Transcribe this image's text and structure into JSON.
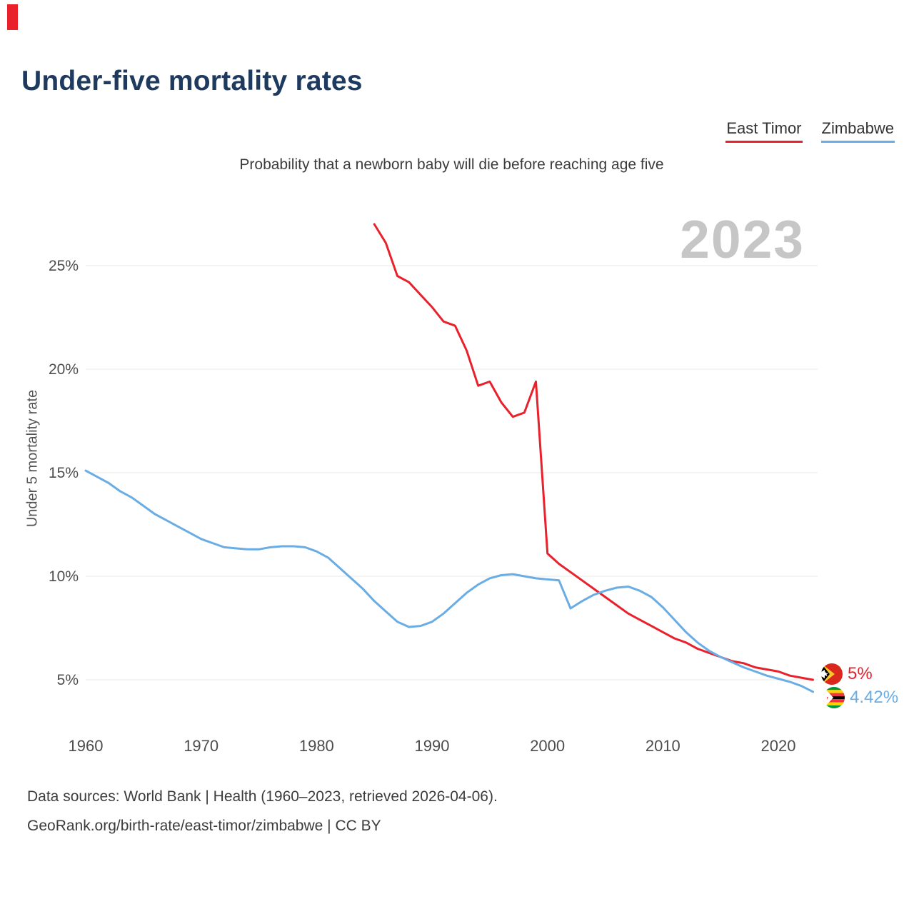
{
  "page": {
    "title": "Under-five mortality rates",
    "subtitle": "Probability that a newborn baby will die before reaching age five",
    "watermark": "2023",
    "footer": {
      "line1": "Data sources: World Bank | Health (1960–2023, retrieved 2026-04-06).",
      "line2": "GeoRank.org/birth-rate/east-timor/zimbabwe | CC BY"
    }
  },
  "legend": {
    "items": [
      {
        "label": "East Timor",
        "color": "#e8212b"
      },
      {
        "label": "Zimbabwe",
        "color": "#6aade4"
      }
    ]
  },
  "end_labels": {
    "east_timor": {
      "value": "5%",
      "color": "#e8212b",
      "flag_icon": "east-timor-flag"
    },
    "zimbabwe": {
      "value": "4.42%",
      "color": "#6aade4",
      "flag_icon": "zimbabwe-flag"
    }
  },
  "chart_data": {
    "type": "line",
    "title": "Under-five mortality rates",
    "subtitle": "Probability that a newborn baby will die before reaching age five",
    "xlabel": "",
    "ylabel": "Under 5 mortality rate",
    "x_ticks": [
      1960,
      1970,
      1980,
      1990,
      2000,
      2010,
      2020
    ],
    "y_ticks": [
      5,
      10,
      15,
      20,
      25
    ],
    "y_tick_labels": [
      "5%",
      "10%",
      "15%",
      "20%",
      "25%"
    ],
    "xlim": [
      1958,
      2026
    ],
    "ylim": [
      4,
      28
    ],
    "grid": "horizontal",
    "legend_position": "top-right",
    "series": [
      {
        "name": "East Timor",
        "color": "#e8212b",
        "end_label": "5%",
        "points": [
          [
            1985,
            27.0
          ],
          [
            1986,
            26.1
          ],
          [
            1987,
            24.5
          ],
          [
            1988,
            24.2
          ],
          [
            1989,
            23.6
          ],
          [
            1990,
            23.0
          ],
          [
            1991,
            22.3
          ],
          [
            1992,
            22.1
          ],
          [
            1993,
            20.9
          ],
          [
            1994,
            19.2
          ],
          [
            1995,
            19.4
          ],
          [
            1996,
            18.4
          ],
          [
            1997,
            17.7
          ],
          [
            1998,
            17.9
          ],
          [
            1999,
            19.4
          ],
          [
            2000,
            11.1
          ],
          [
            2001,
            10.6
          ],
          [
            2002,
            10.2
          ],
          [
            2003,
            9.8
          ],
          [
            2004,
            9.4
          ],
          [
            2005,
            9.0
          ],
          [
            2006,
            8.6
          ],
          [
            2007,
            8.2
          ],
          [
            2008,
            7.9
          ],
          [
            2009,
            7.6
          ],
          [
            2010,
            7.3
          ],
          [
            2011,
            7.0
          ],
          [
            2012,
            6.8
          ],
          [
            2013,
            6.5
          ],
          [
            2014,
            6.3
          ],
          [
            2015,
            6.1
          ],
          [
            2016,
            5.9
          ],
          [
            2017,
            5.8
          ],
          [
            2018,
            5.6
          ],
          [
            2019,
            5.5
          ],
          [
            2020,
            5.4
          ],
          [
            2021,
            5.2
          ],
          [
            2022,
            5.1
          ],
          [
            2023,
            5.0
          ]
        ]
      },
      {
        "name": "Zimbabwe",
        "color": "#6aade4",
        "end_label": "4.42%",
        "points": [
          [
            1960,
            15.1
          ],
          [
            1961,
            14.8
          ],
          [
            1962,
            14.5
          ],
          [
            1963,
            14.1
          ],
          [
            1964,
            13.8
          ],
          [
            1965,
            13.4
          ],
          [
            1966,
            13.0
          ],
          [
            1967,
            12.7
          ],
          [
            1968,
            12.4
          ],
          [
            1969,
            12.1
          ],
          [
            1970,
            11.8
          ],
          [
            1971,
            11.6
          ],
          [
            1972,
            11.4
          ],
          [
            1973,
            11.35
          ],
          [
            1974,
            11.3
          ],
          [
            1975,
            11.3
          ],
          [
            1976,
            11.4
          ],
          [
            1977,
            11.45
          ],
          [
            1978,
            11.45
          ],
          [
            1979,
            11.4
          ],
          [
            1980,
            11.2
          ],
          [
            1981,
            10.9
          ],
          [
            1982,
            10.4
          ],
          [
            1983,
            9.9
          ],
          [
            1984,
            9.4
          ],
          [
            1985,
            8.8
          ],
          [
            1986,
            8.3
          ],
          [
            1987,
            7.8
          ],
          [
            1988,
            7.55
          ],
          [
            1989,
            7.6
          ],
          [
            1990,
            7.8
          ],
          [
            1991,
            8.2
          ],
          [
            1992,
            8.7
          ],
          [
            1993,
            9.2
          ],
          [
            1994,
            9.6
          ],
          [
            1995,
            9.9
          ],
          [
            1996,
            10.05
          ],
          [
            1997,
            10.1
          ],
          [
            1998,
            10.0
          ],
          [
            1999,
            9.9
          ],
          [
            2000,
            9.85
          ],
          [
            2001,
            9.8
          ],
          [
            2002,
            8.45
          ],
          [
            2003,
            8.8
          ],
          [
            2004,
            9.1
          ],
          [
            2005,
            9.3
          ],
          [
            2006,
            9.45
          ],
          [
            2007,
            9.5
          ],
          [
            2008,
            9.3
          ],
          [
            2009,
            9.0
          ],
          [
            2010,
            8.5
          ],
          [
            2011,
            7.9
          ],
          [
            2012,
            7.3
          ],
          [
            2013,
            6.8
          ],
          [
            2014,
            6.4
          ],
          [
            2015,
            6.1
          ],
          [
            2016,
            5.85
          ],
          [
            2017,
            5.6
          ],
          [
            2018,
            5.4
          ],
          [
            2019,
            5.2
          ],
          [
            2020,
            5.05
          ],
          [
            2021,
            4.9
          ],
          [
            2022,
            4.7
          ],
          [
            2023,
            4.42
          ]
        ]
      }
    ]
  }
}
